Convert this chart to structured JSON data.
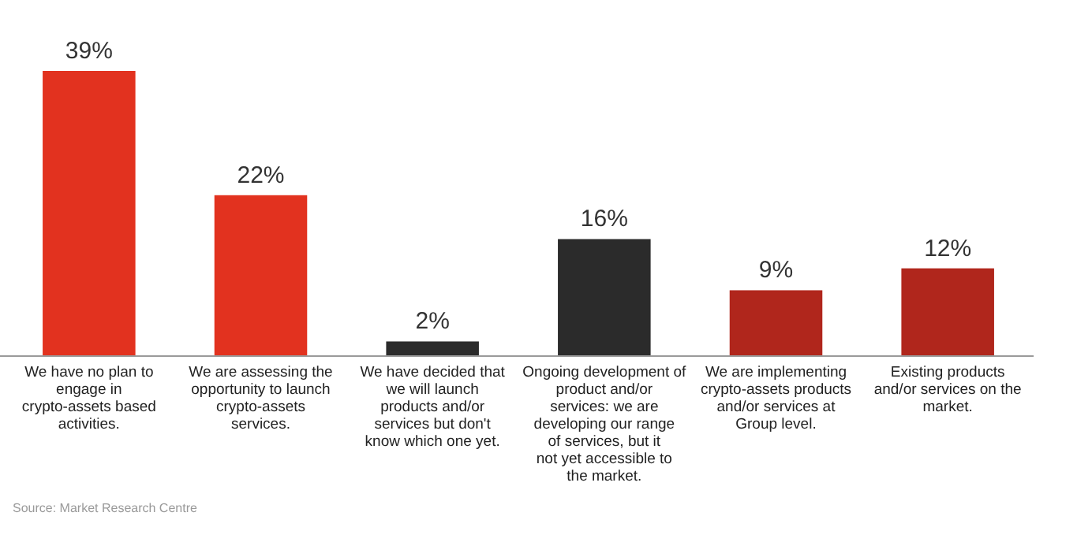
{
  "chart_data": {
    "type": "bar",
    "categories": [
      "We have no plan to engage in crypto-assets based activities.",
      "We are assessing the opportunity to launch crypto-assets services.",
      "We have decided that we will launch products and/or services but don't know which one yet.",
      "Ongoing development of product and/or services: we are developing our range of services, but it not yet accessible to the market.",
      "We are implementing crypto-assets products and/or services at Group level.",
      "Existing products and/or services on the market."
    ],
    "values": [
      39,
      22,
      2,
      16,
      9,
      12
    ],
    "colors": [
      "#e2321f",
      "#e2321f",
      "#2b2b2b",
      "#2b2b2b",
      "#b0261c",
      "#b0261c"
    ],
    "value_labels": [
      "39%",
      "22%",
      "2%",
      "16%",
      "9%",
      "12%"
    ],
    "annotations": [
      "Source: Market Research Centre"
    ]
  }
}
